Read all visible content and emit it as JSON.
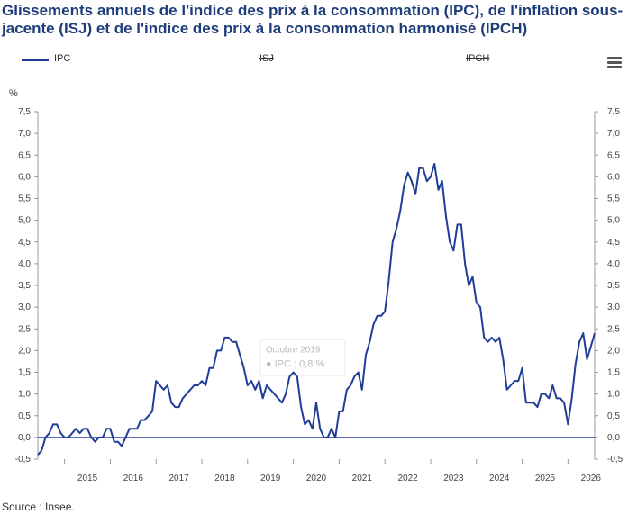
{
  "title": "Glissements annuels de l'indice des prix à la consommation (IPC), de l'inflation sous-jacente (ISJ) et de l'indice des prix à la consommation harmonisé (IPCH)",
  "unit": "%",
  "source": "Source : Insee.",
  "legend": {
    "ipc": "IPC",
    "isj": "ISJ",
    "ipch": "IPCH"
  },
  "tooltip": {
    "date": "Octobre 2019",
    "value": "IPC : 0,8 %"
  },
  "colors": {
    "ipc": "#1f3d99",
    "zero_line": "#1f3d99",
    "grid": "#cccccc"
  },
  "chart_data": {
    "type": "line",
    "title": "Glissements annuels de l'indice des prix à la consommation (IPC), de l'inflation sous-jacente (ISJ) et de l'indice des prix à la consommation harmonisé (IPCH)",
    "xlabel": "",
    "ylabel": "%",
    "ylim": [
      -0.5,
      7.5
    ],
    "xlim": [
      "2014-06",
      "2026-03"
    ],
    "y_ticks": [
      "-0,5",
      "0,0",
      "0,5",
      "1,0",
      "1,5",
      "2,0",
      "2,5",
      "3,0",
      "3,5",
      "4,0",
      "4,5",
      "5,0",
      "5,5",
      "6,0",
      "6,5",
      "7,0",
      "7,5"
    ],
    "x_ticks": [
      "2015",
      "2016",
      "2017",
      "2018",
      "2019",
      "2020",
      "2021",
      "2022",
      "2023",
      "2024",
      "2025",
      "2026"
    ],
    "legend_position": "top",
    "grid": false,
    "hidden_series": [
      "ISJ",
      "IPCH"
    ],
    "series": [
      {
        "name": "IPC",
        "points": [
          [
            "2014-06",
            -0.4
          ],
          [
            "2014-07",
            -0.3
          ],
          [
            "2014-08",
            0.0
          ],
          [
            "2014-09",
            0.1
          ],
          [
            "2014-10",
            0.3
          ],
          [
            "2014-11",
            0.3
          ],
          [
            "2014-12",
            0.1
          ],
          [
            "2015-01",
            0.0
          ],
          [
            "2015-02",
            0.0
          ],
          [
            "2015-03",
            0.1
          ],
          [
            "2015-04",
            0.2
          ],
          [
            "2015-05",
            0.1
          ],
          [
            "2015-06",
            0.2
          ],
          [
            "2015-07",
            0.2
          ],
          [
            "2015-08",
            0.0
          ],
          [
            "2015-09",
            -0.1
          ],
          [
            "2015-10",
            0.0
          ],
          [
            "2015-11",
            0.0
          ],
          [
            "2015-12",
            0.2
          ],
          [
            "2016-01",
            0.2
          ],
          [
            "2016-02",
            -0.1
          ],
          [
            "2016-03",
            -0.1
          ],
          [
            "2016-04",
            -0.2
          ],
          [
            "2016-05",
            0.0
          ],
          [
            "2016-06",
            0.2
          ],
          [
            "2016-07",
            0.2
          ],
          [
            "2016-08",
            0.2
          ],
          [
            "2016-09",
            0.4
          ],
          [
            "2016-10",
            0.4
          ],
          [
            "2016-11",
            0.5
          ],
          [
            "2016-12",
            0.6
          ],
          [
            "2017-01",
            1.3
          ],
          [
            "2017-02",
            1.2
          ],
          [
            "2017-03",
            1.1
          ],
          [
            "2017-04",
            1.2
          ],
          [
            "2017-05",
            0.8
          ],
          [
            "2017-06",
            0.7
          ],
          [
            "2017-07",
            0.7
          ],
          [
            "2017-08",
            0.9
          ],
          [
            "2017-09",
            1.0
          ],
          [
            "2017-10",
            1.1
          ],
          [
            "2017-11",
            1.2
          ],
          [
            "2017-12",
            1.2
          ],
          [
            "2018-01",
            1.3
          ],
          [
            "2018-02",
            1.2
          ],
          [
            "2018-03",
            1.6
          ],
          [
            "2018-04",
            1.6
          ],
          [
            "2018-05",
            2.0
          ],
          [
            "2018-06",
            2.0
          ],
          [
            "2018-07",
            2.3
          ],
          [
            "2018-08",
            2.3
          ],
          [
            "2018-09",
            2.2
          ],
          [
            "2018-10",
            2.2
          ],
          [
            "2018-11",
            1.9
          ],
          [
            "2018-12",
            1.6
          ],
          [
            "2019-01",
            1.2
          ],
          [
            "2019-02",
            1.3
          ],
          [
            "2019-03",
            1.1
          ],
          [
            "2019-04",
            1.3
          ],
          [
            "2019-05",
            0.9
          ],
          [
            "2019-06",
            1.2
          ],
          [
            "2019-07",
            1.1
          ],
          [
            "2019-08",
            1.0
          ],
          [
            "2019-09",
            0.9
          ],
          [
            "2019-10",
            0.8
          ],
          [
            "2019-11",
            1.0
          ],
          [
            "2019-12",
            1.4
          ],
          [
            "2020-01",
            1.5
          ],
          [
            "2020-02",
            1.4
          ],
          [
            "2020-03",
            0.7
          ],
          [
            "2020-04",
            0.3
          ],
          [
            "2020-05",
            0.4
          ],
          [
            "2020-06",
            0.2
          ],
          [
            "2020-07",
            0.8
          ],
          [
            "2020-08",
            0.2
          ],
          [
            "2020-09",
            0.0
          ],
          [
            "2020-10",
            0.0
          ],
          [
            "2020-11",
            0.2
          ],
          [
            "2020-12",
            0.0
          ],
          [
            "2021-01",
            0.6
          ],
          [
            "2021-02",
            0.6
          ],
          [
            "2021-03",
            1.1
          ],
          [
            "2021-04",
            1.2
          ],
          [
            "2021-05",
            1.4
          ],
          [
            "2021-06",
            1.5
          ],
          [
            "2021-07",
            1.1
          ],
          [
            "2021-08",
            1.9
          ],
          [
            "2021-09",
            2.2
          ],
          [
            "2021-10",
            2.6
          ],
          [
            "2021-11",
            2.8
          ],
          [
            "2021-12",
            2.8
          ],
          [
            "2022-01",
            2.9
          ],
          [
            "2022-02",
            3.6
          ],
          [
            "2022-03",
            4.5
          ],
          [
            "2022-04",
            4.8
          ],
          [
            "2022-05",
            5.2
          ],
          [
            "2022-06",
            5.8
          ],
          [
            "2022-07",
            6.1
          ],
          [
            "2022-08",
            5.9
          ],
          [
            "2022-09",
            5.6
          ],
          [
            "2022-10",
            6.2
          ],
          [
            "2022-11",
            6.2
          ],
          [
            "2022-12",
            5.9
          ],
          [
            "2023-01",
            6.0
          ],
          [
            "2023-02",
            6.3
          ],
          [
            "2023-03",
            5.7
          ],
          [
            "2023-04",
            5.9
          ],
          [
            "2023-05",
            5.1
          ],
          [
            "2023-06",
            4.5
          ],
          [
            "2023-07",
            4.3
          ],
          [
            "2023-08",
            4.9
          ],
          [
            "2023-09",
            4.9
          ],
          [
            "2023-10",
            4.0
          ],
          [
            "2023-11",
            3.5
          ],
          [
            "2023-12",
            3.7
          ],
          [
            "2024-01",
            3.1
          ],
          [
            "2024-02",
            3.0
          ],
          [
            "2024-03",
            2.3
          ],
          [
            "2024-04",
            2.2
          ],
          [
            "2024-05",
            2.3
          ],
          [
            "2024-06",
            2.2
          ],
          [
            "2024-07",
            2.3
          ],
          [
            "2024-08",
            1.8
          ],
          [
            "2024-09",
            1.1
          ],
          [
            "2024-10",
            1.2
          ],
          [
            "2024-11",
            1.3
          ],
          [
            "2024-12",
            1.3
          ],
          [
            "2025-01",
            1.6
          ],
          [
            "2025-02",
            0.8
          ],
          [
            "2025-03",
            0.8
          ],
          [
            "2025-04",
            0.8
          ],
          [
            "2025-05",
            0.7
          ],
          [
            "2025-06",
            1.0
          ],
          [
            "2025-07",
            1.0
          ],
          [
            "2025-08",
            0.9
          ],
          [
            "2025-09",
            1.2
          ],
          [
            "2025-10",
            0.9
          ],
          [
            "2025-11",
            0.9
          ],
          [
            "2025-12",
            0.8
          ],
          [
            "2026-01",
            0.3
          ],
          [
            "2026-02",
            0.9
          ],
          [
            "2026-03",
            1.7
          ],
          [
            "2026-04",
            2.2
          ],
          [
            "2026-05",
            2.4
          ],
          [
            "2026-06",
            1.8
          ],
          [
            "2026-07",
            2.1
          ],
          [
            "2026-08",
            2.4
          ]
        ]
      }
    ]
  }
}
